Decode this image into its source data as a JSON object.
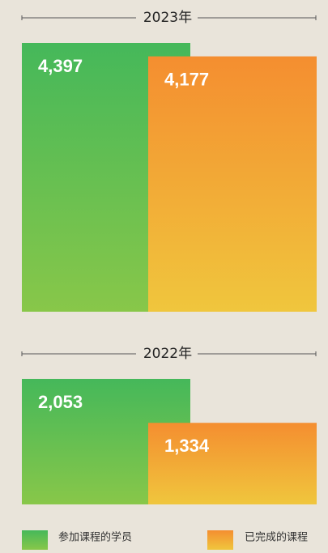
{
  "chart_data": {
    "type": "bar",
    "categories": [
      "2023年",
      "2022年"
    ],
    "series": [
      {
        "name": "参加课程的学员",
        "color": "#45b85a",
        "gradient": [
          "#45b85a",
          "#88c749"
        ],
        "values": [
          4397,
          2053
        ],
        "value_labels": [
          "4,397",
          "2,053"
        ]
      },
      {
        "name": "已完成的课程",
        "color": "#f48e30",
        "gradient": [
          "#f48e30",
          "#f0c63d"
        ],
        "values": [
          4177,
          1334
        ],
        "value_labels": [
          "4,177",
          "1,334"
        ]
      }
    ]
  }
}
